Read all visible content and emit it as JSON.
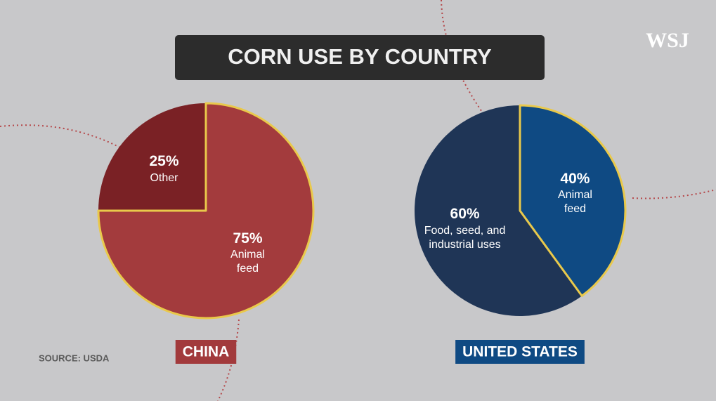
{
  "title": "CORN USE BY COUNTRY",
  "source": "SOURCE: USDA",
  "logo": "WSJ",
  "chart_data": [
    {
      "type": "pie",
      "title": "CHINA",
      "title_color": "#a23a3c",
      "categories": [
        "Other",
        "Animal feed"
      ],
      "values": [
        25,
        75
      ],
      "value_labels": [
        "25%",
        "75%"
      ],
      "colors": [
        "#7a2125",
        "#a33b3d"
      ]
    },
    {
      "type": "pie",
      "title": "UNITED STATES",
      "title_color": "#0f4a83",
      "categories": [
        "Animal feed",
        "Food, seed, and industrial uses"
      ],
      "values": [
        40,
        60
      ],
      "value_labels": [
        "40%",
        "60%"
      ],
      "colors": [
        "#0f4a83",
        "#1f3556"
      ]
    }
  ]
}
